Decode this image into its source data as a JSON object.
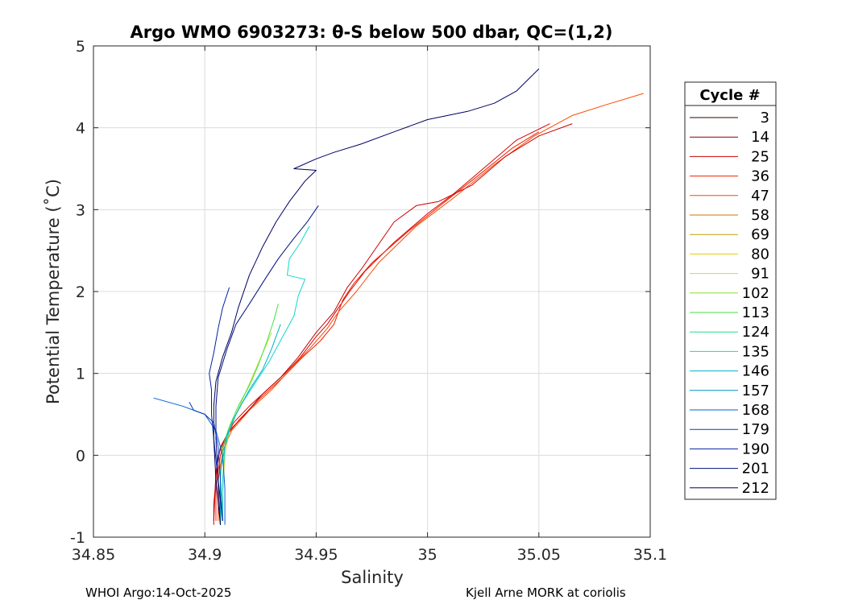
{
  "chart_data": {
    "type": "line",
    "title": "Argo WMO 6903273: θ-S below 500 dbar,  QC=(1,2)",
    "xlabel": "Salinity",
    "ylabel": "Potential Temperature (˚C)",
    "xlim": [
      34.85,
      35.1
    ],
    "ylim": [
      -1,
      5
    ],
    "xticks": [
      34.85,
      34.9,
      34.95,
      35,
      35.05,
      35.1
    ],
    "xtick_labels": [
      "34.85",
      "34.9",
      "34.95",
      "35",
      "35.05",
      "35.1"
    ],
    "yticks": [
      -1,
      0,
      1,
      2,
      3,
      4,
      5
    ],
    "ytick_labels": [
      "-1",
      "0",
      "1",
      "2",
      "3",
      "4",
      "5"
    ],
    "grid": true,
    "legend": {
      "title": "Cycle #",
      "placement": "outside-right",
      "entries": [
        {
          "label": "3",
          "color": "#3a0000"
        },
        {
          "label": "14",
          "color": "#8c0000"
        },
        {
          "label": "25",
          "color": "#c80000"
        },
        {
          "label": "36",
          "color": "#ef1f00"
        },
        {
          "label": "47",
          "color": "#fa4a00"
        },
        {
          "label": "58",
          "color": "#c87800"
        },
        {
          "label": "69",
          "color": "#c8a000"
        },
        {
          "label": "80",
          "color": "#e0d000"
        },
        {
          "label": "91",
          "color": "#c8e030"
        },
        {
          "label": "102",
          "color": "#88e030"
        },
        {
          "label": "113",
          "color": "#40e040"
        },
        {
          "label": "124",
          "color": "#20e090"
        },
        {
          "label": "135",
          "color": "#10d8c8"
        },
        {
          "label": "146",
          "color": "#00b0c8"
        },
        {
          "label": "157",
          "color": "#0090c0"
        },
        {
          "label": "168",
          "color": "#0060d0"
        },
        {
          "label": "179",
          "color": "#0040c0"
        },
        {
          "label": "190",
          "color": "#0020a0"
        },
        {
          "label": "201",
          "color": "#001080"
        },
        {
          "label": "212",
          "color": "#000060"
        }
      ]
    },
    "series": [
      {
        "color": "#d80000",
        "points": [
          [
            34.904,
            -0.85
          ],
          [
            34.904,
            -0.6
          ],
          [
            34.905,
            -0.3
          ],
          [
            34.906,
            0.0
          ],
          [
            34.909,
            0.2
          ],
          [
            34.913,
            0.4
          ],
          [
            34.92,
            0.6
          ],
          [
            34.928,
            0.8
          ],
          [
            34.936,
            1.0
          ],
          [
            34.943,
            1.2
          ],
          [
            34.95,
            1.45
          ],
          [
            34.955,
            1.6
          ],
          [
            34.96,
            1.8
          ],
          [
            34.965,
            2.0
          ],
          [
            34.972,
            2.25
          ],
          [
            34.985,
            2.6
          ],
          [
            35.0,
            2.95
          ],
          [
            35.012,
            3.2
          ],
          [
            35.025,
            3.5
          ],
          [
            35.04,
            3.85
          ],
          [
            35.055,
            4.05
          ]
        ]
      },
      {
        "color": "#ef1f00",
        "points": [
          [
            34.905,
            -0.8
          ],
          [
            34.905,
            -0.4
          ],
          [
            34.907,
            0.0
          ],
          [
            34.91,
            0.25
          ],
          [
            34.916,
            0.45
          ],
          [
            34.925,
            0.7
          ],
          [
            34.935,
            0.95
          ],
          [
            34.944,
            1.2
          ],
          [
            34.952,
            1.4
          ],
          [
            34.958,
            1.6
          ],
          [
            34.962,
            1.9
          ],
          [
            34.967,
            2.1
          ],
          [
            34.975,
            2.35
          ],
          [
            34.992,
            2.75
          ],
          [
            35.008,
            3.1
          ],
          [
            35.022,
            3.4
          ],
          [
            35.038,
            3.75
          ],
          [
            35.05,
            3.95
          ]
        ]
      },
      {
        "color": "#fa4a00",
        "points": [
          [
            34.906,
            -0.8
          ],
          [
            34.906,
            -0.3
          ],
          [
            34.908,
            0.05
          ],
          [
            34.912,
            0.3
          ],
          [
            34.92,
            0.55
          ],
          [
            34.93,
            0.8
          ],
          [
            34.94,
            1.1
          ],
          [
            34.947,
            1.3
          ],
          [
            34.955,
            1.55
          ],
          [
            34.96,
            1.75
          ],
          [
            34.968,
            2.0
          ],
          [
            34.978,
            2.35
          ],
          [
            34.995,
            2.8
          ],
          [
            35.012,
            3.15
          ],
          [
            35.03,
            3.55
          ],
          [
            35.048,
            3.9
          ],
          [
            35.065,
            4.15
          ],
          [
            35.08,
            4.28
          ],
          [
            35.097,
            4.42
          ]
        ]
      },
      {
        "color": "#c80000",
        "points": [
          [
            34.904,
            -0.8
          ],
          [
            34.905,
            -0.2
          ],
          [
            34.907,
            0.1
          ],
          [
            34.911,
            0.3
          ],
          [
            34.918,
            0.5
          ],
          [
            34.926,
            0.75
          ],
          [
            34.934,
            0.95
          ],
          [
            34.942,
            1.2
          ],
          [
            34.95,
            1.5
          ],
          [
            34.958,
            1.75
          ],
          [
            34.964,
            2.05
          ],
          [
            34.971,
            2.3
          ],
          [
            34.985,
            2.85
          ],
          [
            34.995,
            3.05
          ],
          [
            35.005,
            3.1
          ],
          [
            35.02,
            3.3
          ],
          [
            35.035,
            3.65
          ],
          [
            35.05,
            3.9
          ],
          [
            35.065,
            4.05
          ]
        ]
      },
      {
        "color": "#c8e030",
        "points": [
          [
            34.907,
            -0.85
          ],
          [
            34.908,
            -0.5
          ],
          [
            34.909,
            0.0
          ],
          [
            34.911,
            0.3
          ],
          [
            34.914,
            0.5
          ],
          [
            34.918,
            0.75
          ],
          [
            34.922,
            1.0
          ],
          [
            34.926,
            1.25
          ],
          [
            34.93,
            1.5
          ]
        ]
      },
      {
        "color": "#40e040",
        "points": [
          [
            34.907,
            -0.8
          ],
          [
            34.907,
            -0.3
          ],
          [
            34.908,
            0.1
          ],
          [
            34.911,
            0.35
          ],
          [
            34.915,
            0.6
          ],
          [
            34.92,
            0.85
          ],
          [
            34.924,
            1.1
          ],
          [
            34.928,
            1.4
          ],
          [
            34.931,
            1.65
          ],
          [
            34.933,
            1.85
          ]
        ]
      },
      {
        "color": "#10d8c8",
        "points": [
          [
            34.908,
            -0.8
          ],
          [
            34.908,
            -0.3
          ],
          [
            34.909,
            0.1
          ],
          [
            34.912,
            0.4
          ],
          [
            34.917,
            0.65
          ],
          [
            34.923,
            0.9
          ],
          [
            34.929,
            1.15
          ],
          [
            34.935,
            1.45
          ],
          [
            34.94,
            1.7
          ],
          [
            34.942,
            1.95
          ],
          [
            34.945,
            2.15
          ],
          [
            34.937,
            2.2
          ],
          [
            34.938,
            2.4
          ],
          [
            34.943,
            2.6
          ],
          [
            34.947,
            2.8
          ]
        ]
      },
      {
        "color": "#00b0c8",
        "points": [
          [
            34.907,
            -0.85
          ],
          [
            34.907,
            -0.2
          ],
          [
            34.91,
            0.25
          ],
          [
            34.914,
            0.5
          ],
          [
            34.92,
            0.8
          ],
          [
            34.926,
            1.05
          ],
          [
            34.93,
            1.3
          ],
          [
            34.934,
            1.6
          ]
        ]
      },
      {
        "color": "#0060d0",
        "points": [
          [
            34.909,
            -0.85
          ],
          [
            34.909,
            -0.4
          ],
          [
            34.908,
            0.0
          ],
          [
            34.905,
            0.3
          ],
          [
            34.9,
            0.5
          ],
          [
            34.89,
            0.6
          ],
          [
            34.877,
            0.7
          ]
        ]
      },
      {
        "color": "#0040c0",
        "points": [
          [
            34.908,
            -0.8
          ],
          [
            34.907,
            -0.3
          ],
          [
            34.906,
            0.1
          ],
          [
            34.904,
            0.4
          ],
          [
            34.9,
            0.5
          ],
          [
            34.895,
            0.55
          ],
          [
            34.893,
            0.65
          ]
        ]
      },
      {
        "color": "#0020a0",
        "points": [
          [
            34.907,
            -0.85
          ],
          [
            34.906,
            -0.3
          ],
          [
            34.904,
            0.2
          ],
          [
            34.903,
            0.5
          ],
          [
            34.903,
            0.8
          ],
          [
            34.902,
            1.0
          ],
          [
            34.904,
            1.25
          ],
          [
            34.906,
            1.55
          ],
          [
            34.908,
            1.8
          ],
          [
            34.911,
            2.05
          ]
        ]
      },
      {
        "color": "#001080",
        "points": [
          [
            34.908,
            -0.8
          ],
          [
            34.906,
            -0.3
          ],
          [
            34.905,
            0.2
          ],
          [
            34.905,
            0.6
          ],
          [
            34.906,
            0.95
          ],
          [
            34.91,
            1.3
          ],
          [
            34.914,
            1.6
          ],
          [
            34.92,
            1.85
          ],
          [
            34.927,
            2.15
          ],
          [
            34.933,
            2.4
          ],
          [
            34.94,
            2.65
          ],
          [
            34.946,
            2.85
          ],
          [
            34.951,
            3.05
          ]
        ]
      },
      {
        "color": "#000060",
        "points": [
          [
            34.907,
            -0.85
          ],
          [
            34.905,
            -0.3
          ],
          [
            34.904,
            0.2
          ],
          [
            34.904,
            0.6
          ],
          [
            34.905,
            0.9
          ],
          [
            34.908,
            1.2
          ],
          [
            34.912,
            1.5
          ],
          [
            34.915,
            1.8
          ],
          [
            34.92,
            2.2
          ],
          [
            34.926,
            2.55
          ],
          [
            34.932,
            2.85
          ],
          [
            34.938,
            3.1
          ],
          [
            34.945,
            3.35
          ],
          [
            34.95,
            3.48
          ],
          [
            34.94,
            3.5
          ],
          [
            34.95,
            3.62
          ],
          [
            34.958,
            3.7
          ],
          [
            34.97,
            3.8
          ],
          [
            34.985,
            3.95
          ],
          [
            35.0,
            4.1
          ],
          [
            35.018,
            4.2
          ],
          [
            35.03,
            4.3
          ],
          [
            35.04,
            4.45
          ],
          [
            35.05,
            4.72
          ]
        ]
      }
    ]
  },
  "footer": {
    "left": "WHOI Argo:14-Oct-2025",
    "right": "Kjell Arne MORK at coriolis"
  }
}
